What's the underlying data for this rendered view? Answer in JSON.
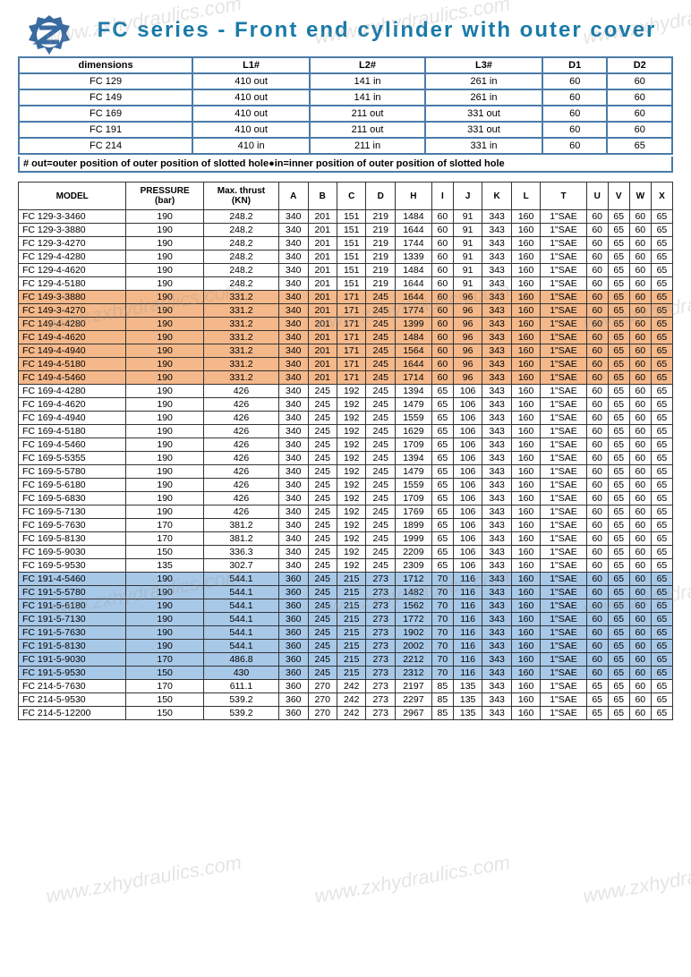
{
  "title": "FC series - Front end cylinder with outer cover",
  "note": "# out=outer position of outer position of slotted hole●in=inner position of outer position of slotted hole",
  "dim_headers": [
    "dimensions",
    "L1#",
    "L2#",
    "L3#",
    "D1",
    "D2"
  ],
  "dim_rows": [
    [
      "FC 129",
      "410 out",
      "141 in",
      "261 in",
      "60",
      "60"
    ],
    [
      "FC 149",
      "410 out",
      "141 in",
      "261 in",
      "60",
      "60"
    ],
    [
      "FC 169",
      "410 out",
      "211 out",
      "331 out",
      "60",
      "60"
    ],
    [
      "FC 191",
      "410 out",
      "211 out",
      "331 out",
      "60",
      "60"
    ],
    [
      "FC 214",
      "410 in",
      "211 in",
      "331 in",
      "60",
      "65"
    ]
  ],
  "spec_headers": [
    "MODEL",
    "PRESSURE (bar)",
    "Max. thrust (KN)",
    "A",
    "B",
    "C",
    "D",
    "H",
    "I",
    "J",
    "K",
    "L",
    "T",
    "U",
    "V",
    "W",
    "X"
  ],
  "spec_rows": [
    {
      "c": [
        "FC 129-3-3460",
        "190",
        "248.2",
        "340",
        "201",
        "151",
        "219",
        "1484",
        "60",
        "91",
        "343",
        "160",
        "1\"SAE",
        "60",
        "65",
        "60",
        "65"
      ],
      "hl": ""
    },
    {
      "c": [
        "FC 129-3-3880",
        "190",
        "248.2",
        "340",
        "201",
        "151",
        "219",
        "1644",
        "60",
        "91",
        "343",
        "160",
        "1\"SAE",
        "60",
        "65",
        "60",
        "65"
      ],
      "hl": ""
    },
    {
      "c": [
        "FC 129-3-4270",
        "190",
        "248.2",
        "340",
        "201",
        "151",
        "219",
        "1744",
        "60",
        "91",
        "343",
        "160",
        "1\"SAE",
        "60",
        "65",
        "60",
        "65"
      ],
      "hl": ""
    },
    {
      "c": [
        "FC 129-4-4280",
        "190",
        "248.2",
        "340",
        "201",
        "151",
        "219",
        "1339",
        "60",
        "91",
        "343",
        "160",
        "1\"SAE",
        "60",
        "65",
        "60",
        "65"
      ],
      "hl": ""
    },
    {
      "c": [
        "FC 129-4-4620",
        "190",
        "248.2",
        "340",
        "201",
        "151",
        "219",
        "1484",
        "60",
        "91",
        "343",
        "160",
        "1\"SAE",
        "60",
        "65",
        "60",
        "65"
      ],
      "hl": ""
    },
    {
      "c": [
        "FC 129-4-5180",
        "190",
        "248.2",
        "340",
        "201",
        "151",
        "219",
        "1644",
        "60",
        "91",
        "343",
        "160",
        "1\"SAE",
        "60",
        "65",
        "60",
        "65"
      ],
      "hl": ""
    },
    {
      "c": [
        "FC 149-3-3880",
        "190",
        "331.2",
        "340",
        "201",
        "171",
        "245",
        "1644",
        "60",
        "96",
        "343",
        "160",
        "1\"SAE",
        "60",
        "65",
        "60",
        "65"
      ],
      "hl": "orange"
    },
    {
      "c": [
        "FC 149-3-4270",
        "190",
        "331.2",
        "340",
        "201",
        "171",
        "245",
        "1774",
        "60",
        "96",
        "343",
        "160",
        "1\"SAE",
        "60",
        "65",
        "60",
        "65"
      ],
      "hl": "orange"
    },
    {
      "c": [
        "FC 149-4-4280",
        "190",
        "331.2",
        "340",
        "201",
        "171",
        "245",
        "1399",
        "60",
        "96",
        "343",
        "160",
        "1\"SAE",
        "60",
        "65",
        "60",
        "65"
      ],
      "hl": "orange"
    },
    {
      "c": [
        "FC 149-4-4620",
        "190",
        "331.2",
        "340",
        "201",
        "171",
        "245",
        "1484",
        "60",
        "96",
        "343",
        "160",
        "1\"SAE",
        "60",
        "65",
        "60",
        "65"
      ],
      "hl": "orange"
    },
    {
      "c": [
        "FC 149-4-4940",
        "190",
        "331.2",
        "340",
        "201",
        "171",
        "245",
        "1564",
        "60",
        "96",
        "343",
        "160",
        "1\"SAE",
        "60",
        "65",
        "60",
        "65"
      ],
      "hl": "orange"
    },
    {
      "c": [
        "FC 149-4-5180",
        "190",
        "331.2",
        "340",
        "201",
        "171",
        "245",
        "1644",
        "60",
        "96",
        "343",
        "160",
        "1\"SAE",
        "60",
        "65",
        "60",
        "65"
      ],
      "hl": "orange"
    },
    {
      "c": [
        "FC 149-4-5460",
        "190",
        "331.2",
        "340",
        "201",
        "171",
        "245",
        "1714",
        "60",
        "96",
        "343",
        "160",
        "1\"SAE",
        "60",
        "65",
        "60",
        "65"
      ],
      "hl": "orange"
    },
    {
      "c": [
        "FC 169-4-4280",
        "190",
        "426",
        "340",
        "245",
        "192",
        "245",
        "1394",
        "65",
        "106",
        "343",
        "160",
        "1\"SAE",
        "60",
        "65",
        "60",
        "65"
      ],
      "hl": ""
    },
    {
      "c": [
        "FC 169-4-4620",
        "190",
        "426",
        "340",
        "245",
        "192",
        "245",
        "1479",
        "65",
        "106",
        "343",
        "160",
        "1\"SAE",
        "60",
        "65",
        "60",
        "65"
      ],
      "hl": ""
    },
    {
      "c": [
        "FC 169-4-4940",
        "190",
        "426",
        "340",
        "245",
        "192",
        "245",
        "1559",
        "65",
        "106",
        "343",
        "160",
        "1\"SAE",
        "60",
        "65",
        "60",
        "65"
      ],
      "hl": ""
    },
    {
      "c": [
        "FC 169-4-5180",
        "190",
        "426",
        "340",
        "245",
        "192",
        "245",
        "1629",
        "65",
        "106",
        "343",
        "160",
        "1\"SAE",
        "60",
        "65",
        "60",
        "65"
      ],
      "hl": ""
    },
    {
      "c": [
        "FC 169-4-5460",
        "190",
        "426",
        "340",
        "245",
        "192",
        "245",
        "1709",
        "65",
        "106",
        "343",
        "160",
        "1\"SAE",
        "60",
        "65",
        "60",
        "65"
      ],
      "hl": ""
    },
    {
      "c": [
        "FC 169-5-5355",
        "190",
        "426",
        "340",
        "245",
        "192",
        "245",
        "1394",
        "65",
        "106",
        "343",
        "160",
        "1\"SAE",
        "60",
        "65",
        "60",
        "65"
      ],
      "hl": ""
    },
    {
      "c": [
        "FC 169-5-5780",
        "190",
        "426",
        "340",
        "245",
        "192",
        "245",
        "1479",
        "65",
        "106",
        "343",
        "160",
        "1\"SAE",
        "60",
        "65",
        "60",
        "65"
      ],
      "hl": ""
    },
    {
      "c": [
        "FC 169-5-6180",
        "190",
        "426",
        "340",
        "245",
        "192",
        "245",
        "1559",
        "65",
        "106",
        "343",
        "160",
        "1\"SAE",
        "60",
        "65",
        "60",
        "65"
      ],
      "hl": ""
    },
    {
      "c": [
        "FC 169-5-6830",
        "190",
        "426",
        "340",
        "245",
        "192",
        "245",
        "1709",
        "65",
        "106",
        "343",
        "160",
        "1\"SAE",
        "60",
        "65",
        "60",
        "65"
      ],
      "hl": ""
    },
    {
      "c": [
        "FC 169-5-7130",
        "190",
        "426",
        "340",
        "245",
        "192",
        "245",
        "1769",
        "65",
        "106",
        "343",
        "160",
        "1\"SAE",
        "60",
        "65",
        "60",
        "65"
      ],
      "hl": ""
    },
    {
      "c": [
        "FC 169-5-7630",
        "170",
        "381.2",
        "340",
        "245",
        "192",
        "245",
        "1899",
        "65",
        "106",
        "343",
        "160",
        "1\"SAE",
        "60",
        "65",
        "60",
        "65"
      ],
      "hl": ""
    },
    {
      "c": [
        "FC 169-5-8130",
        "170",
        "381.2",
        "340",
        "245",
        "192",
        "245",
        "1999",
        "65",
        "106",
        "343",
        "160",
        "1\"SAE",
        "60",
        "65",
        "60",
        "65"
      ],
      "hl": ""
    },
    {
      "c": [
        "FC 169-5-9030",
        "150",
        "336.3",
        "340",
        "245",
        "192",
        "245",
        "2209",
        "65",
        "106",
        "343",
        "160",
        "1\"SAE",
        "60",
        "65",
        "60",
        "65"
      ],
      "hl": ""
    },
    {
      "c": [
        "FC 169-5-9530",
        "135",
        "302.7",
        "340",
        "245",
        "192",
        "245",
        "2309",
        "65",
        "106",
        "343",
        "160",
        "1\"SAE",
        "60",
        "65",
        "60",
        "65"
      ],
      "hl": ""
    },
    {
      "c": [
        "FC 191-4-5460",
        "190",
        "544.1",
        "360",
        "245",
        "215",
        "273",
        "1712",
        "70",
        "116",
        "343",
        "160",
        "1\"SAE",
        "60",
        "65",
        "60",
        "65"
      ],
      "hl": "blue"
    },
    {
      "c": [
        "FC 191-5-5780",
        "190",
        "544.1",
        "360",
        "245",
        "215",
        "273",
        "1482",
        "70",
        "116",
        "343",
        "160",
        "1\"SAE",
        "60",
        "65",
        "60",
        "65"
      ],
      "hl": "blue"
    },
    {
      "c": [
        "FC 191-5-6180",
        "190",
        "544.1",
        "360",
        "245",
        "215",
        "273",
        "1562",
        "70",
        "116",
        "343",
        "160",
        "1\"SAE",
        "60",
        "65",
        "60",
        "65"
      ],
      "hl": "blue"
    },
    {
      "c": [
        "FC 191-5-7130",
        "190",
        "544.1",
        "360",
        "245",
        "215",
        "273",
        "1772",
        "70",
        "116",
        "343",
        "160",
        "1\"SAE",
        "60",
        "65",
        "60",
        "65"
      ],
      "hl": "blue"
    },
    {
      "c": [
        "FC 191-5-7630",
        "190",
        "544.1",
        "360",
        "245",
        "215",
        "273",
        "1902",
        "70",
        "116",
        "343",
        "160",
        "1\"SAE",
        "60",
        "65",
        "60",
        "65"
      ],
      "hl": "blue"
    },
    {
      "c": [
        "FC 191-5-8130",
        "190",
        "544.1",
        "360",
        "245",
        "215",
        "273",
        "2002",
        "70",
        "116",
        "343",
        "160",
        "1\"SAE",
        "60",
        "65",
        "60",
        "65"
      ],
      "hl": "blue"
    },
    {
      "c": [
        "FC 191-5-9030",
        "170",
        "486.8",
        "360",
        "245",
        "215",
        "273",
        "2212",
        "70",
        "116",
        "343",
        "160",
        "1\"SAE",
        "60",
        "65",
        "60",
        "65"
      ],
      "hl": "blue"
    },
    {
      "c": [
        "FC 191-5-9530",
        "150",
        "430",
        "360",
        "245",
        "215",
        "273",
        "2312",
        "70",
        "116",
        "343",
        "160",
        "1\"SAE",
        "60",
        "65",
        "60",
        "65"
      ],
      "hl": "blue"
    },
    {
      "c": [
        "FC 214-5-7630",
        "170",
        "611.1",
        "360",
        "270",
        "242",
        "273",
        "2197",
        "85",
        "135",
        "343",
        "160",
        "1\"SAE",
        "65",
        "65",
        "60",
        "65"
      ],
      "hl": ""
    },
    {
      "c": [
        "FC 214-5-9530",
        "150",
        "539.2",
        "360",
        "270",
        "242",
        "273",
        "2297",
        "85",
        "135",
        "343",
        "160",
        "1\"SAE",
        "65",
        "65",
        "60",
        "65"
      ],
      "hl": ""
    },
    {
      "c": [
        "FC 214-5-12200",
        "150",
        "539.2",
        "360",
        "270",
        "242",
        "273",
        "2967",
        "85",
        "135",
        "343",
        "160",
        "1\"SAE",
        "65",
        "65",
        "60",
        "65"
      ],
      "hl": ""
    }
  ],
  "watermark_text": "www.zxhydraulics.com",
  "colors": {
    "title": "#1a7aa8",
    "border_dim": "#4a7ba8",
    "hl_orange": "#f4b88a",
    "hl_blue": "#a8c8e8"
  }
}
